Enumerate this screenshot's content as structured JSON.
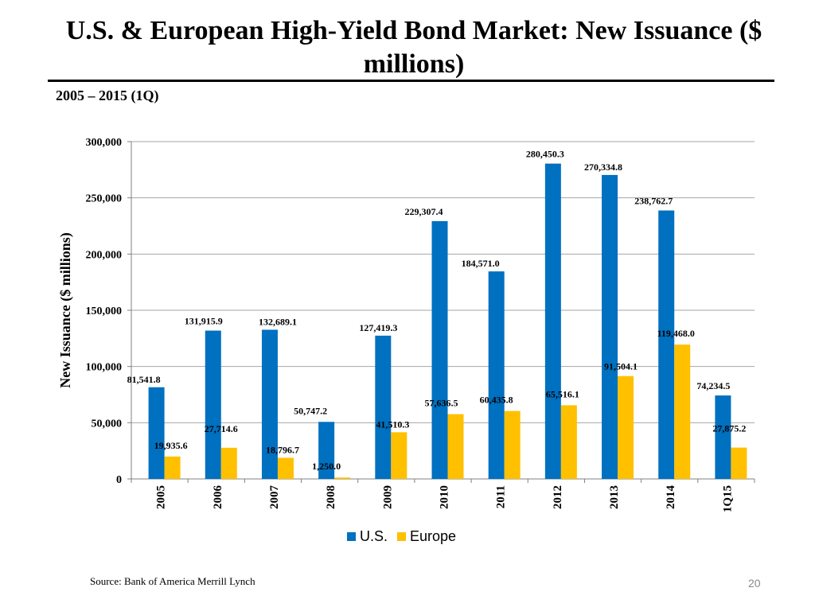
{
  "slide": {
    "title": "U.S. & European High-Yield Bond Market: New Issuance ($ millions)",
    "subtitle": "2005 – 2015 (1Q)",
    "source": "Source: Bank of America Merrill Lynch",
    "page_number": "20"
  },
  "chart_data": {
    "type": "bar",
    "title": "",
    "xlabel": "",
    "ylabel": "New Issuance ($ millions)",
    "ylim": [
      0,
      300000
    ],
    "yticks": [
      0,
      50000,
      100000,
      150000,
      200000,
      250000,
      300000
    ],
    "ytick_labels": [
      "0",
      "50,000",
      "100,000",
      "150,000",
      "200,000",
      "250,000",
      "300,000"
    ],
    "grid": true,
    "legend_position": "bottom",
    "categories": [
      "2005",
      "2006",
      "2007",
      "2008",
      "2009",
      "2010",
      "2011",
      "2012",
      "2013",
      "2014",
      "1Q15"
    ],
    "series": [
      {
        "name": "U.S.",
        "color": "#0070C0",
        "values": [
          81541.8,
          131915.9,
          132689.1,
          50747.2,
          127419.3,
          229307.4,
          184571.0,
          280450.3,
          270334.8,
          238762.7,
          74234.5
        ],
        "labels": [
          "81,541.8",
          "131,915.9",
          "132,689.1",
          "50,747.2",
          "127,419.3",
          "229,307.4",
          "184,571.0",
          "280,450.3",
          "270,334.8",
          "238,762.7",
          "74,234.5"
        ]
      },
      {
        "name": "Europe",
        "color": "#FFC000",
        "values": [
          19935.6,
          27714.6,
          18796.7,
          1250.0,
          41510.3,
          57636.5,
          60435.8,
          65516.1,
          91504.1,
          119468.0,
          27875.2
        ],
        "labels": [
          "19,935.6",
          "27,714.6",
          "18,796.7",
          "1,250.0",
          "41,510.3",
          "57,636.5",
          "60,435.8",
          "65,516.1",
          "91,504.1",
          "119,468.0",
          "27,875.2"
        ]
      }
    ]
  }
}
